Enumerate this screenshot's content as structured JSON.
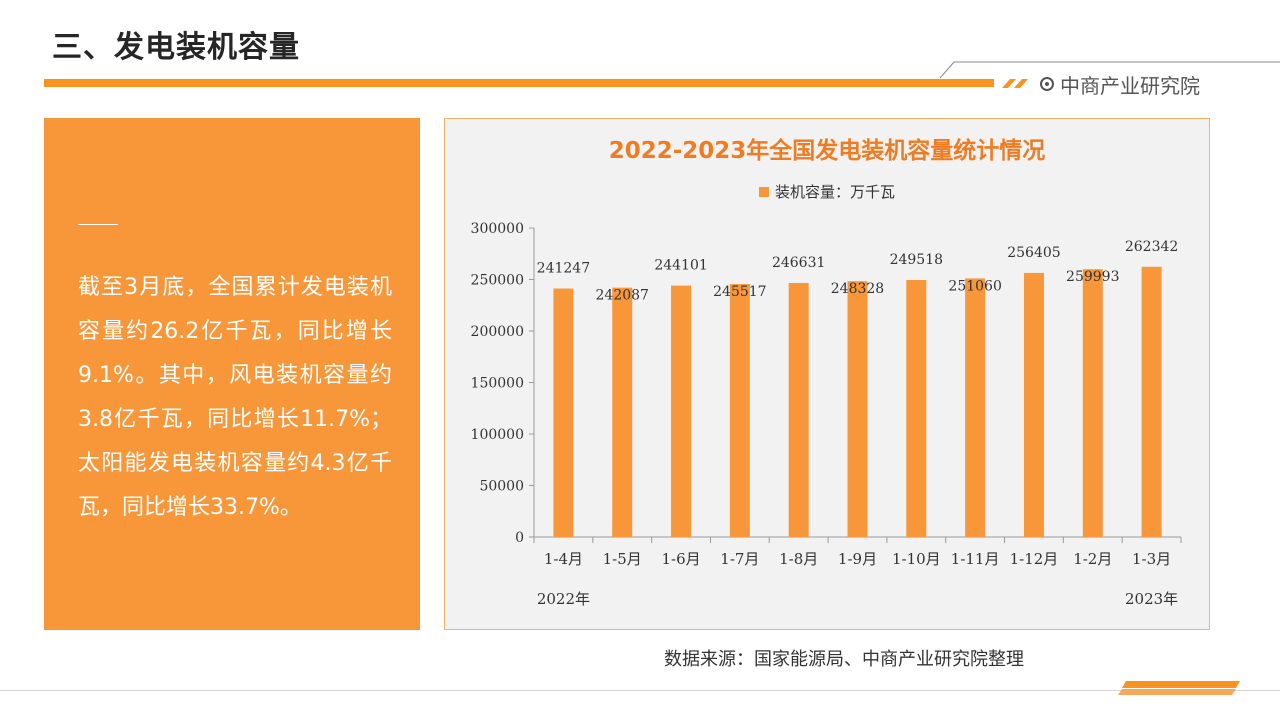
{
  "header": {
    "title": "三、发电装机容量",
    "brand": "中商产业研究院"
  },
  "panel": {
    "text": "截至3月底，全国累计发电装机容量约26.2亿千瓦，同比增长9.1%。其中，风电装机容量约3.8亿千瓦，同比增长11.7%；太阳能发电装机容量约4.3亿千瓦，同比增长33.7%。"
  },
  "source": "数据来源：国家能源局、中商产业研究院整理",
  "colors": {
    "accent": "#f7931e",
    "bar": "#f7973a",
    "title": "#f07c22",
    "chart_bg": "#f2f2f2"
  },
  "chart_data": {
    "type": "bar",
    "title": "2022-2023年全国发电装机容量统计情况",
    "categories": [
      "1-4月",
      "1-5月",
      "1-6月",
      "1-7月",
      "1-8月",
      "1-9月",
      "1-10月",
      "1-11月",
      "1-12月",
      "1-2月",
      "1-3月"
    ],
    "series": [
      {
        "name": "装机容量：万千瓦",
        "values": [
          241247,
          242087,
          244101,
          245517,
          246631,
          248328,
          249518,
          251060,
          256405,
          259993,
          262342
        ]
      }
    ],
    "year_labels": [
      {
        "label": "2022年",
        "category_index": 0
      },
      {
        "label": "2023年",
        "category_index": 10
      }
    ],
    "ylim": [
      0,
      300000
    ],
    "yticks": [
      0,
      50000,
      100000,
      150000,
      200000,
      250000,
      300000
    ],
    "grid": false,
    "legend_position": "top"
  }
}
